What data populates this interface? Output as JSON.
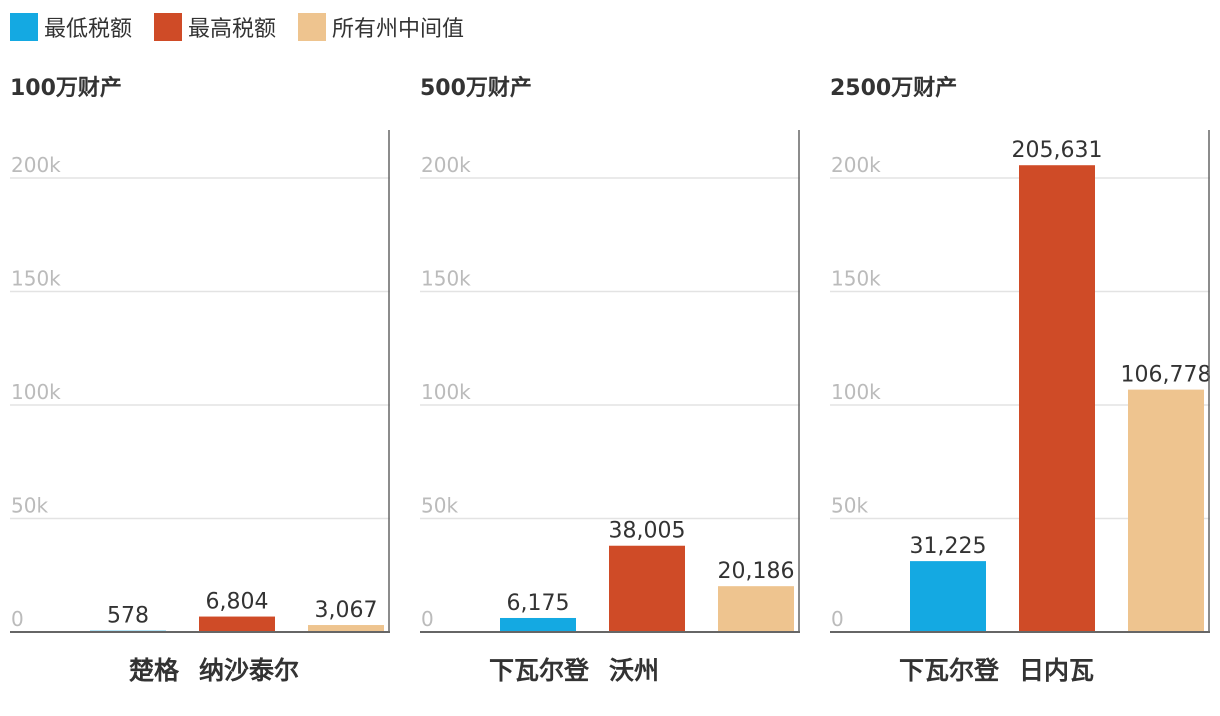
{
  "legend": [
    {
      "label": "最低税额",
      "color": "#14a9e2"
    },
    {
      "label": "最高税额",
      "color": "#cf4b27"
    },
    {
      "label": "所有州中间值",
      "color": "#eec48f"
    }
  ],
  "colors": {
    "grid": "#e3e3e3",
    "axis": "#666666",
    "tick_label": "#bbbbbb",
    "value_label": "#333333"
  },
  "chart_data": [
    {
      "type": "bar",
      "title": "100万财产",
      "ylim": [
        0,
        220000
      ],
      "yticks": [
        0,
        50000,
        100000,
        150000,
        200000
      ],
      "ytick_labels": [
        "0",
        "50k",
        "100k",
        "150k",
        "200k"
      ],
      "bars": [
        {
          "series": "最低税额",
          "value": 578,
          "label": "578"
        },
        {
          "series": "最高税额",
          "value": 6804,
          "label": "6,804"
        },
        {
          "series": "所有州中间值",
          "value": 3067,
          "label": "3,067"
        }
      ],
      "xlabel_parts": [
        "楚格",
        "纳沙泰尔"
      ],
      "grid": true
    },
    {
      "type": "bar",
      "title": "500万财产",
      "ylim": [
        0,
        220000
      ],
      "yticks": [
        0,
        50000,
        100000,
        150000,
        200000
      ],
      "ytick_labels": [
        "0",
        "50k",
        "100k",
        "150k",
        "200k"
      ],
      "bars": [
        {
          "series": "最低税额",
          "value": 6175,
          "label": "6,175"
        },
        {
          "series": "最高税额",
          "value": 38005,
          "label": "38,005"
        },
        {
          "series": "所有州中间值",
          "value": 20186,
          "label": "20,186"
        }
      ],
      "xlabel_parts": [
        "下瓦尔登",
        "沃州"
      ],
      "grid": true
    },
    {
      "type": "bar",
      "title": "2500万财产",
      "ylim": [
        0,
        220000
      ],
      "yticks": [
        0,
        50000,
        100000,
        150000,
        200000
      ],
      "ytick_labels": [
        "0",
        "50k",
        "100k",
        "150k",
        "200k"
      ],
      "bars": [
        {
          "series": "最低税额",
          "value": 31225,
          "label": "31,225"
        },
        {
          "series": "最高税额",
          "value": 205631,
          "label": "205,631"
        },
        {
          "series": "所有州中间值",
          "value": 106778,
          "label": "106,778"
        }
      ],
      "xlabel_parts": [
        "下瓦尔登",
        "日内瓦"
      ],
      "grid": true
    }
  ]
}
